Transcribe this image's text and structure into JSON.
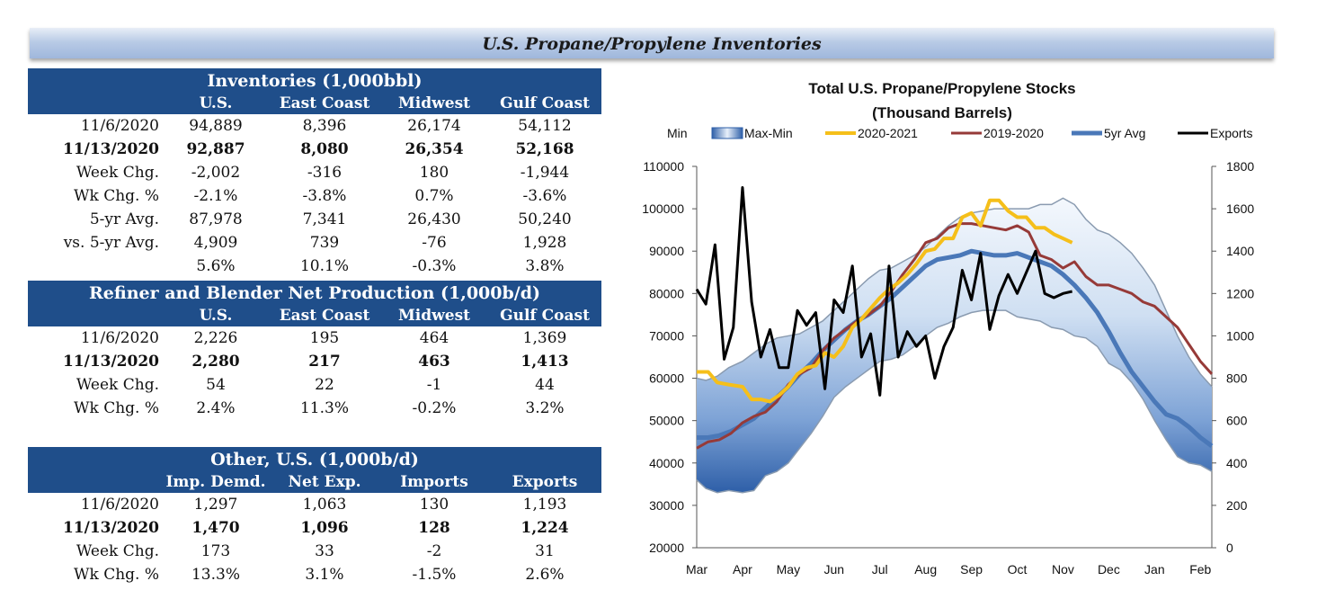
{
  "page_title": "U.S. Propane/Propylene Inventories",
  "inventories": {
    "title": "Inventories (1,000bbl)",
    "columns": [
      "",
      "U.S.",
      "East Coast",
      "Midwest",
      "Gulf Coast"
    ],
    "rows": [
      {
        "label": "11/6/2020",
        "values": [
          "94,889",
          "8,396",
          "26,174",
          "54,112"
        ]
      },
      {
        "label": "11/13/2020",
        "values": [
          "92,887",
          "8,080",
          "26,354",
          "52,168"
        ]
      },
      {
        "label": "Week Chg.",
        "values": [
          "-2,002",
          "-316",
          "180",
          "-1,944"
        ]
      },
      {
        "label": "Wk Chg. %",
        "values": [
          "-2.1%",
          "-3.8%",
          "0.7%",
          "-3.6%"
        ]
      },
      {
        "label": "5-yr Avg.",
        "values": [
          "87,978",
          "7,341",
          "26,430",
          "50,240"
        ]
      },
      {
        "label": "vs. 5-yr Avg.",
        "values": [
          "4,909",
          "739",
          "-76",
          "1,928"
        ]
      },
      {
        "label": "",
        "values": [
          "5.6%",
          "10.1%",
          "-0.3%",
          "3.8%"
        ]
      }
    ]
  },
  "production": {
    "title": "Refiner and Blender Net Production (1,000b/d)",
    "columns": [
      "",
      "U.S.",
      "East Coast",
      "Midwest",
      "Gulf Coast"
    ],
    "rows": [
      {
        "label": "11/6/2020",
        "values": [
          "2,226",
          "195",
          "464",
          "1,369"
        ]
      },
      {
        "label": "11/13/2020",
        "values": [
          "2,280",
          "217",
          "463",
          "1,413"
        ]
      },
      {
        "label": "Week Chg.",
        "values": [
          "54",
          "22",
          "-1",
          "44"
        ]
      },
      {
        "label": "Wk Chg. %",
        "values": [
          "2.4%",
          "11.3%",
          "-0.2%",
          "3.2%"
        ]
      }
    ]
  },
  "other": {
    "title": "Other, U.S. (1,000b/d)",
    "columns": [
      "",
      "Imp. Demd.",
      "Net Exp.",
      "Imports",
      "Exports"
    ],
    "rows": [
      {
        "label": "11/6/2020",
        "values": [
          "1,297",
          "1,063",
          "130",
          "1,193"
        ]
      },
      {
        "label": "11/13/2020",
        "values": [
          "1,470",
          "1,096",
          "128",
          "1,224"
        ]
      },
      {
        "label": "Week Chg.",
        "values": [
          "173",
          "33",
          "-2",
          "31"
        ]
      },
      {
        "label": "Wk Chg. %",
        "values": [
          "13.3%",
          "3.1%",
          "-1.5%",
          "2.6%"
        ]
      }
    ]
  },
  "chart_data": {
    "type": "line",
    "title_line1": "Total U.S. Propane/Propylene Stocks",
    "title_line2": "(Thousand Barrels)",
    "categories": [
      "Mar",
      "Apr",
      "May",
      "Jun",
      "Jul",
      "Aug",
      "Sep",
      "Oct",
      "Nov",
      "Dec",
      "Jan",
      "Feb"
    ],
    "y_left": {
      "min": 20000,
      "max": 110000,
      "ticks": [
        "110000",
        "100000",
        "90000",
        "80000",
        "70000",
        "60000",
        "50000",
        "40000",
        "30000",
        "20000"
      ]
    },
    "y_right": {
      "min": 0,
      "max": 1800,
      "ticks": [
        "1800",
        "1600",
        "1400",
        "1200",
        "1000",
        "800",
        "600",
        "400",
        "200",
        "0"
      ]
    },
    "legend": {
      "min_label": "Min",
      "maxmin_label": "Max-Min",
      "s2020": "2020-2021",
      "s2019": "2019-2020",
      "avg": "5yr Avg",
      "exports": "Exports"
    },
    "colors": {
      "band_edge": "#2e5fa8",
      "band_mid": "#dbe7f5",
      "band_line": "#8a9bb0",
      "s2020": "#f5bf1a",
      "s2019": "#963a38",
      "avg": "#4a78b8",
      "exports": "#000000"
    },
    "series": [
      {
        "name": "Max",
        "axis": "left",
        "x": [
          0,
          0.2,
          0.45,
          0.7,
          1,
          1.25,
          1.5,
          1.75,
          2,
          2.25,
          2.5,
          2.75,
          3,
          3.25,
          3.5,
          3.75,
          4,
          4.25,
          4.5,
          4.75,
          5,
          5.25,
          5.5,
          5.75,
          6,
          6.25,
          6.5,
          6.75,
          7,
          7.25,
          7.5,
          7.75,
          8,
          8.25,
          8.5,
          8.75,
          9,
          9.25,
          9.5,
          9.75,
          10,
          10.25,
          10.5,
          10.75,
          11,
          11.25
        ],
        "values": [
          60000,
          59500,
          60500,
          62500,
          64000,
          66000,
          68000,
          69500,
          70000,
          70500,
          72000,
          73500,
          76000,
          78500,
          81000,
          83500,
          85500,
          86000,
          87500,
          89000,
          91000,
          93500,
          96000,
          98000,
          99000,
          99500,
          100000,
          100000,
          100000,
          100000,
          101000,
          101000,
          102500,
          101000,
          97500,
          95000,
          94000,
          92000,
          89500,
          86000,
          82000,
          76000,
          70000,
          65000,
          61000,
          58000
        ]
      },
      {
        "name": "Min",
        "axis": "left",
        "x": [
          0,
          0.2,
          0.45,
          0.7,
          1,
          1.25,
          1.5,
          1.75,
          2,
          2.25,
          2.5,
          2.75,
          3,
          3.25,
          3.5,
          3.75,
          4,
          4.25,
          4.5,
          4.75,
          5,
          5.25,
          5.5,
          5.75,
          6,
          6.25,
          6.5,
          6.75,
          7,
          7.25,
          7.5,
          7.75,
          8,
          8.25,
          8.5,
          8.75,
          9,
          9.25,
          9.5,
          9.75,
          10,
          10.25,
          10.5,
          10.75,
          11,
          11.25
        ],
        "values": [
          36000,
          34000,
          33000,
          33500,
          33000,
          33500,
          37000,
          38000,
          40000,
          43500,
          47000,
          51000,
          55500,
          58000,
          60000,
          62000,
          64000,
          64500,
          65500,
          67500,
          70000,
          72000,
          73000,
          74500,
          75500,
          76000,
          76000,
          76000,
          74500,
          74000,
          73500,
          72000,
          71500,
          70000,
          69500,
          67500,
          63500,
          62000,
          59000,
          55000,
          50000,
          45500,
          41500,
          40000,
          39500,
          38000
        ]
      },
      {
        "name": "2020-2021",
        "axis": "left",
        "x": [
          0,
          0.25,
          0.45,
          0.7,
          1,
          1.2,
          1.4,
          1.6,
          1.8,
          2,
          2.2,
          2.4,
          2.6,
          2.8,
          3,
          3.2,
          3.4,
          3.6,
          3.8,
          4,
          4.2,
          4.4,
          4.6,
          4.8,
          5,
          5.2,
          5.4,
          5.6,
          5.8,
          6,
          6.2,
          6.4,
          6.6,
          6.8,
          7,
          7.2,
          7.4,
          7.6,
          7.8,
          8,
          8.2
        ],
        "values": [
          61500,
          61500,
          59000,
          58500,
          58000,
          55000,
          55000,
          54500,
          56000,
          58000,
          61000,
          62500,
          63000,
          66000,
          65000,
          67500,
          72000,
          74000,
          76500,
          79000,
          81000,
          82500,
          84500,
          87000,
          90000,
          90500,
          93000,
          93000,
          98000,
          99000,
          96000,
          102000,
          102000,
          99500,
          98000,
          98000,
          95500,
          95500,
          94000,
          93000,
          92000
        ]
      },
      {
        "name": "2019-2020",
        "axis": "left",
        "x": [
          0,
          0.25,
          0.5,
          0.75,
          1,
          1.25,
          1.5,
          1.75,
          2,
          2.25,
          2.5,
          2.75,
          3,
          3.25,
          3.5,
          3.75,
          4,
          4.25,
          4.5,
          4.75,
          5,
          5.25,
          5.5,
          5.75,
          6,
          6.25,
          6.5,
          6.75,
          7,
          7.25,
          7.5,
          7.75,
          8,
          8.25,
          8.5,
          8.75,
          9,
          9.25,
          9.5,
          9.75,
          10,
          10.25,
          10.5,
          10.75,
          11,
          11.25
        ],
        "values": [
          43500,
          45000,
          45500,
          47000,
          49500,
          51000,
          52000,
          54500,
          58500,
          61000,
          62500,
          66500,
          69500,
          71500,
          73500,
          75000,
          77000,
          80500,
          84500,
          88000,
          92000,
          93000,
          95500,
          96500,
          96500,
          96000,
          95500,
          95000,
          96000,
          94500,
          89000,
          88000,
          86000,
          87500,
          84000,
          82000,
          82000,
          81000,
          80000,
          78000,
          77000,
          74500,
          72000,
          68000,
          64000,
          61000
        ]
      },
      {
        "name": "5yr Avg",
        "axis": "left",
        "x": [
          0,
          0.25,
          0.5,
          0.75,
          1,
          1.25,
          1.5,
          1.75,
          2,
          2.25,
          2.5,
          2.75,
          3,
          3.25,
          3.5,
          3.75,
          4,
          4.25,
          4.5,
          4.75,
          5,
          5.25,
          5.5,
          5.75,
          6,
          6.25,
          6.5,
          6.75,
          7,
          7.25,
          7.5,
          7.75,
          8,
          8.25,
          8.5,
          8.75,
          9,
          9.25,
          9.5,
          9.75,
          10,
          10.25,
          10.5,
          10.75,
          11,
          11.25
        ],
        "values": [
          46000,
          46000,
          46500,
          47500,
          49000,
          50500,
          53000,
          55500,
          58000,
          61000,
          63500,
          66500,
          69000,
          71500,
          73500,
          75000,
          77000,
          79000,
          81500,
          84000,
          86500,
          88000,
          88500,
          89000,
          90000,
          89500,
          89000,
          89000,
          89500,
          88500,
          87500,
          86500,
          84500,
          82000,
          79000,
          75500,
          71000,
          66000,
          61500,
          58000,
          54500,
          51500,
          50500,
          48500,
          46000,
          44000
        ]
      },
      {
        "name": "Exports",
        "axis": "right",
        "x": [
          0,
          0.2,
          0.4,
          0.6,
          0.8,
          1,
          1.2,
          1.4,
          1.6,
          1.8,
          2,
          2.2,
          2.4,
          2.6,
          2.8,
          3,
          3.2,
          3.4,
          3.6,
          3.8,
          4,
          4.2,
          4.4,
          4.6,
          4.8,
          5,
          5.2,
          5.4,
          5.6,
          5.8,
          6,
          6.2,
          6.4,
          6.6,
          6.8,
          7,
          7.2,
          7.4,
          7.6,
          7.8,
          8,
          8.2
        ],
        "values": [
          1220,
          1150,
          1430,
          890,
          1040,
          1700,
          1160,
          900,
          1030,
          850,
          850,
          1120,
          1050,
          1110,
          750,
          1170,
          1110,
          1330,
          900,
          1010,
          720,
          1330,
          900,
          1020,
          950,
          1000,
          800,
          950,
          1040,
          1310,
          1170,
          1390,
          1030,
          1190,
          1290,
          1200,
          1300,
          1400,
          1200,
          1180,
          1200,
          1210
        ]
      }
    ]
  }
}
